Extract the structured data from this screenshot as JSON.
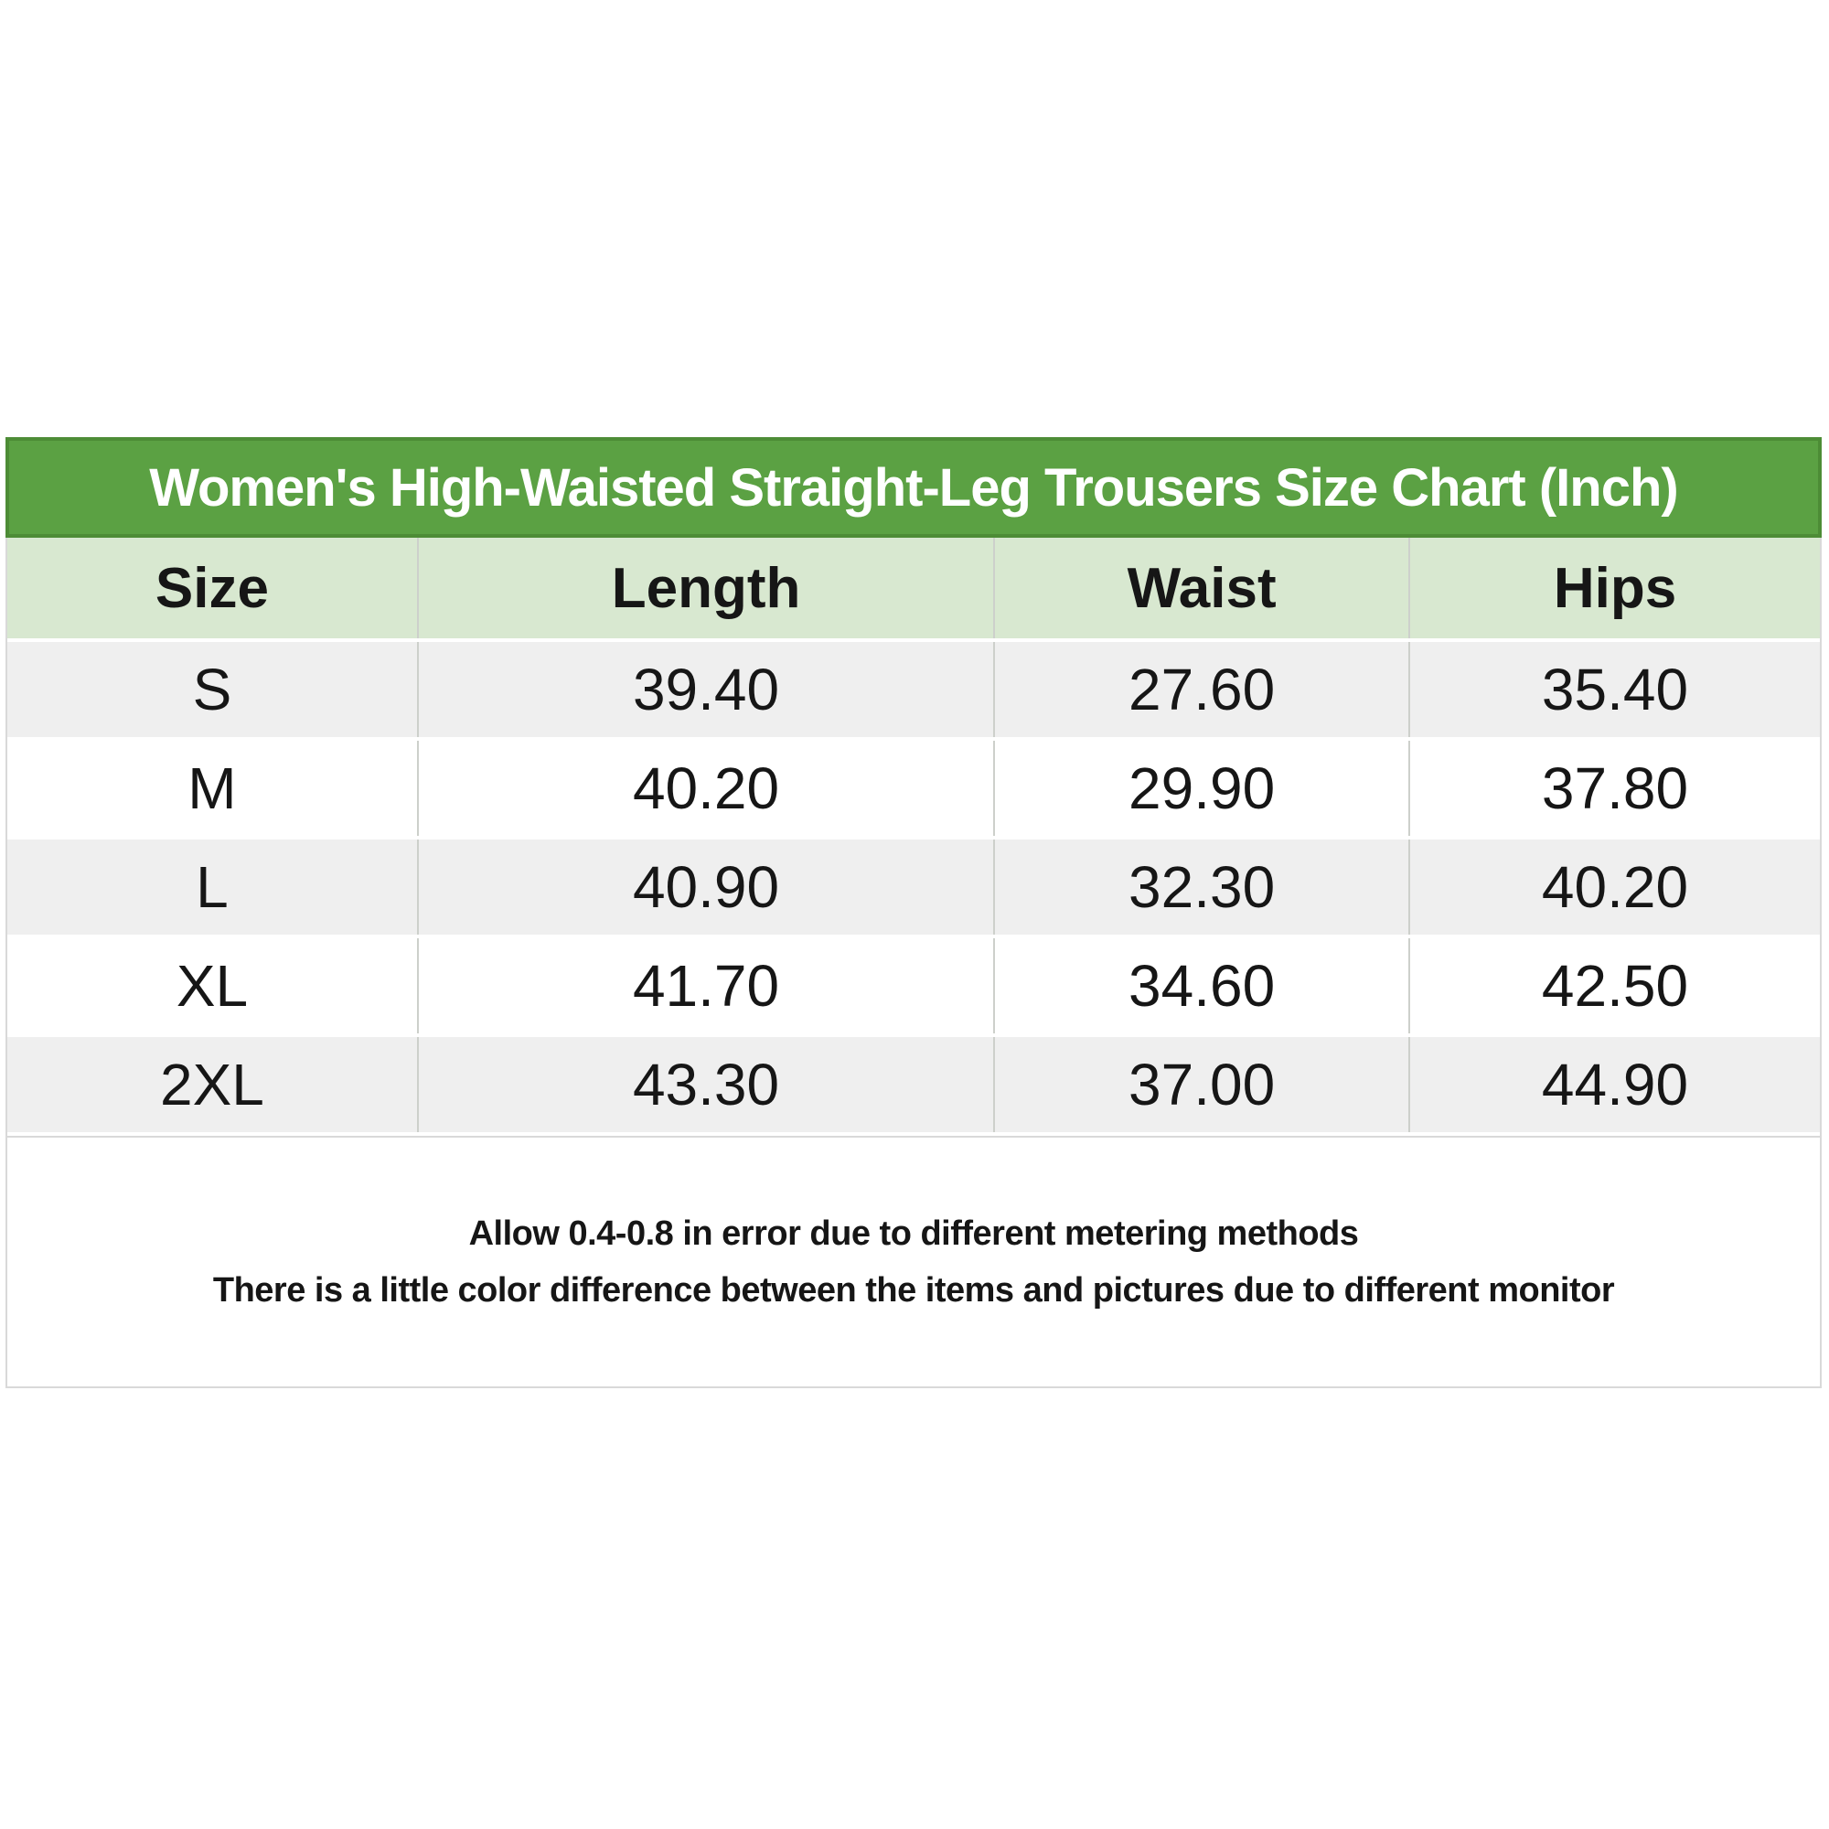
{
  "chart_data": {
    "type": "table",
    "title": "Women's High-Waisted Straight-Leg Trousers Size Chart (Inch)",
    "unit": "inch",
    "columns": [
      "Size",
      "Length",
      "Waist",
      "Hips"
    ],
    "rows": [
      [
        "S",
        "39.40",
        "27.60",
        "35.40"
      ],
      [
        "M",
        "40.20",
        "29.90",
        "37.80"
      ],
      [
        "L",
        "40.90",
        "32.30",
        "40.20"
      ],
      [
        "XL",
        "41.70",
        "34.60",
        "42.50"
      ],
      [
        "2XL",
        "43.30",
        "37.00",
        "44.90"
      ]
    ],
    "notes": [
      "Allow 0.4-0.8 in error due to different metering methods",
      "There is a little color difference between the items and pictures due to different monitor"
    ]
  },
  "colors": {
    "title_bg": "#5ba143",
    "title_border": "#4d8c36",
    "title_text": "#ffffff",
    "header_bg": "#d8e8d0",
    "row_alt_bg": "#efefef",
    "row_bg": "#ffffff",
    "column_divider": "#cdd0cb",
    "outer_border": "#d9d9d9",
    "body_text": "#161616"
  }
}
